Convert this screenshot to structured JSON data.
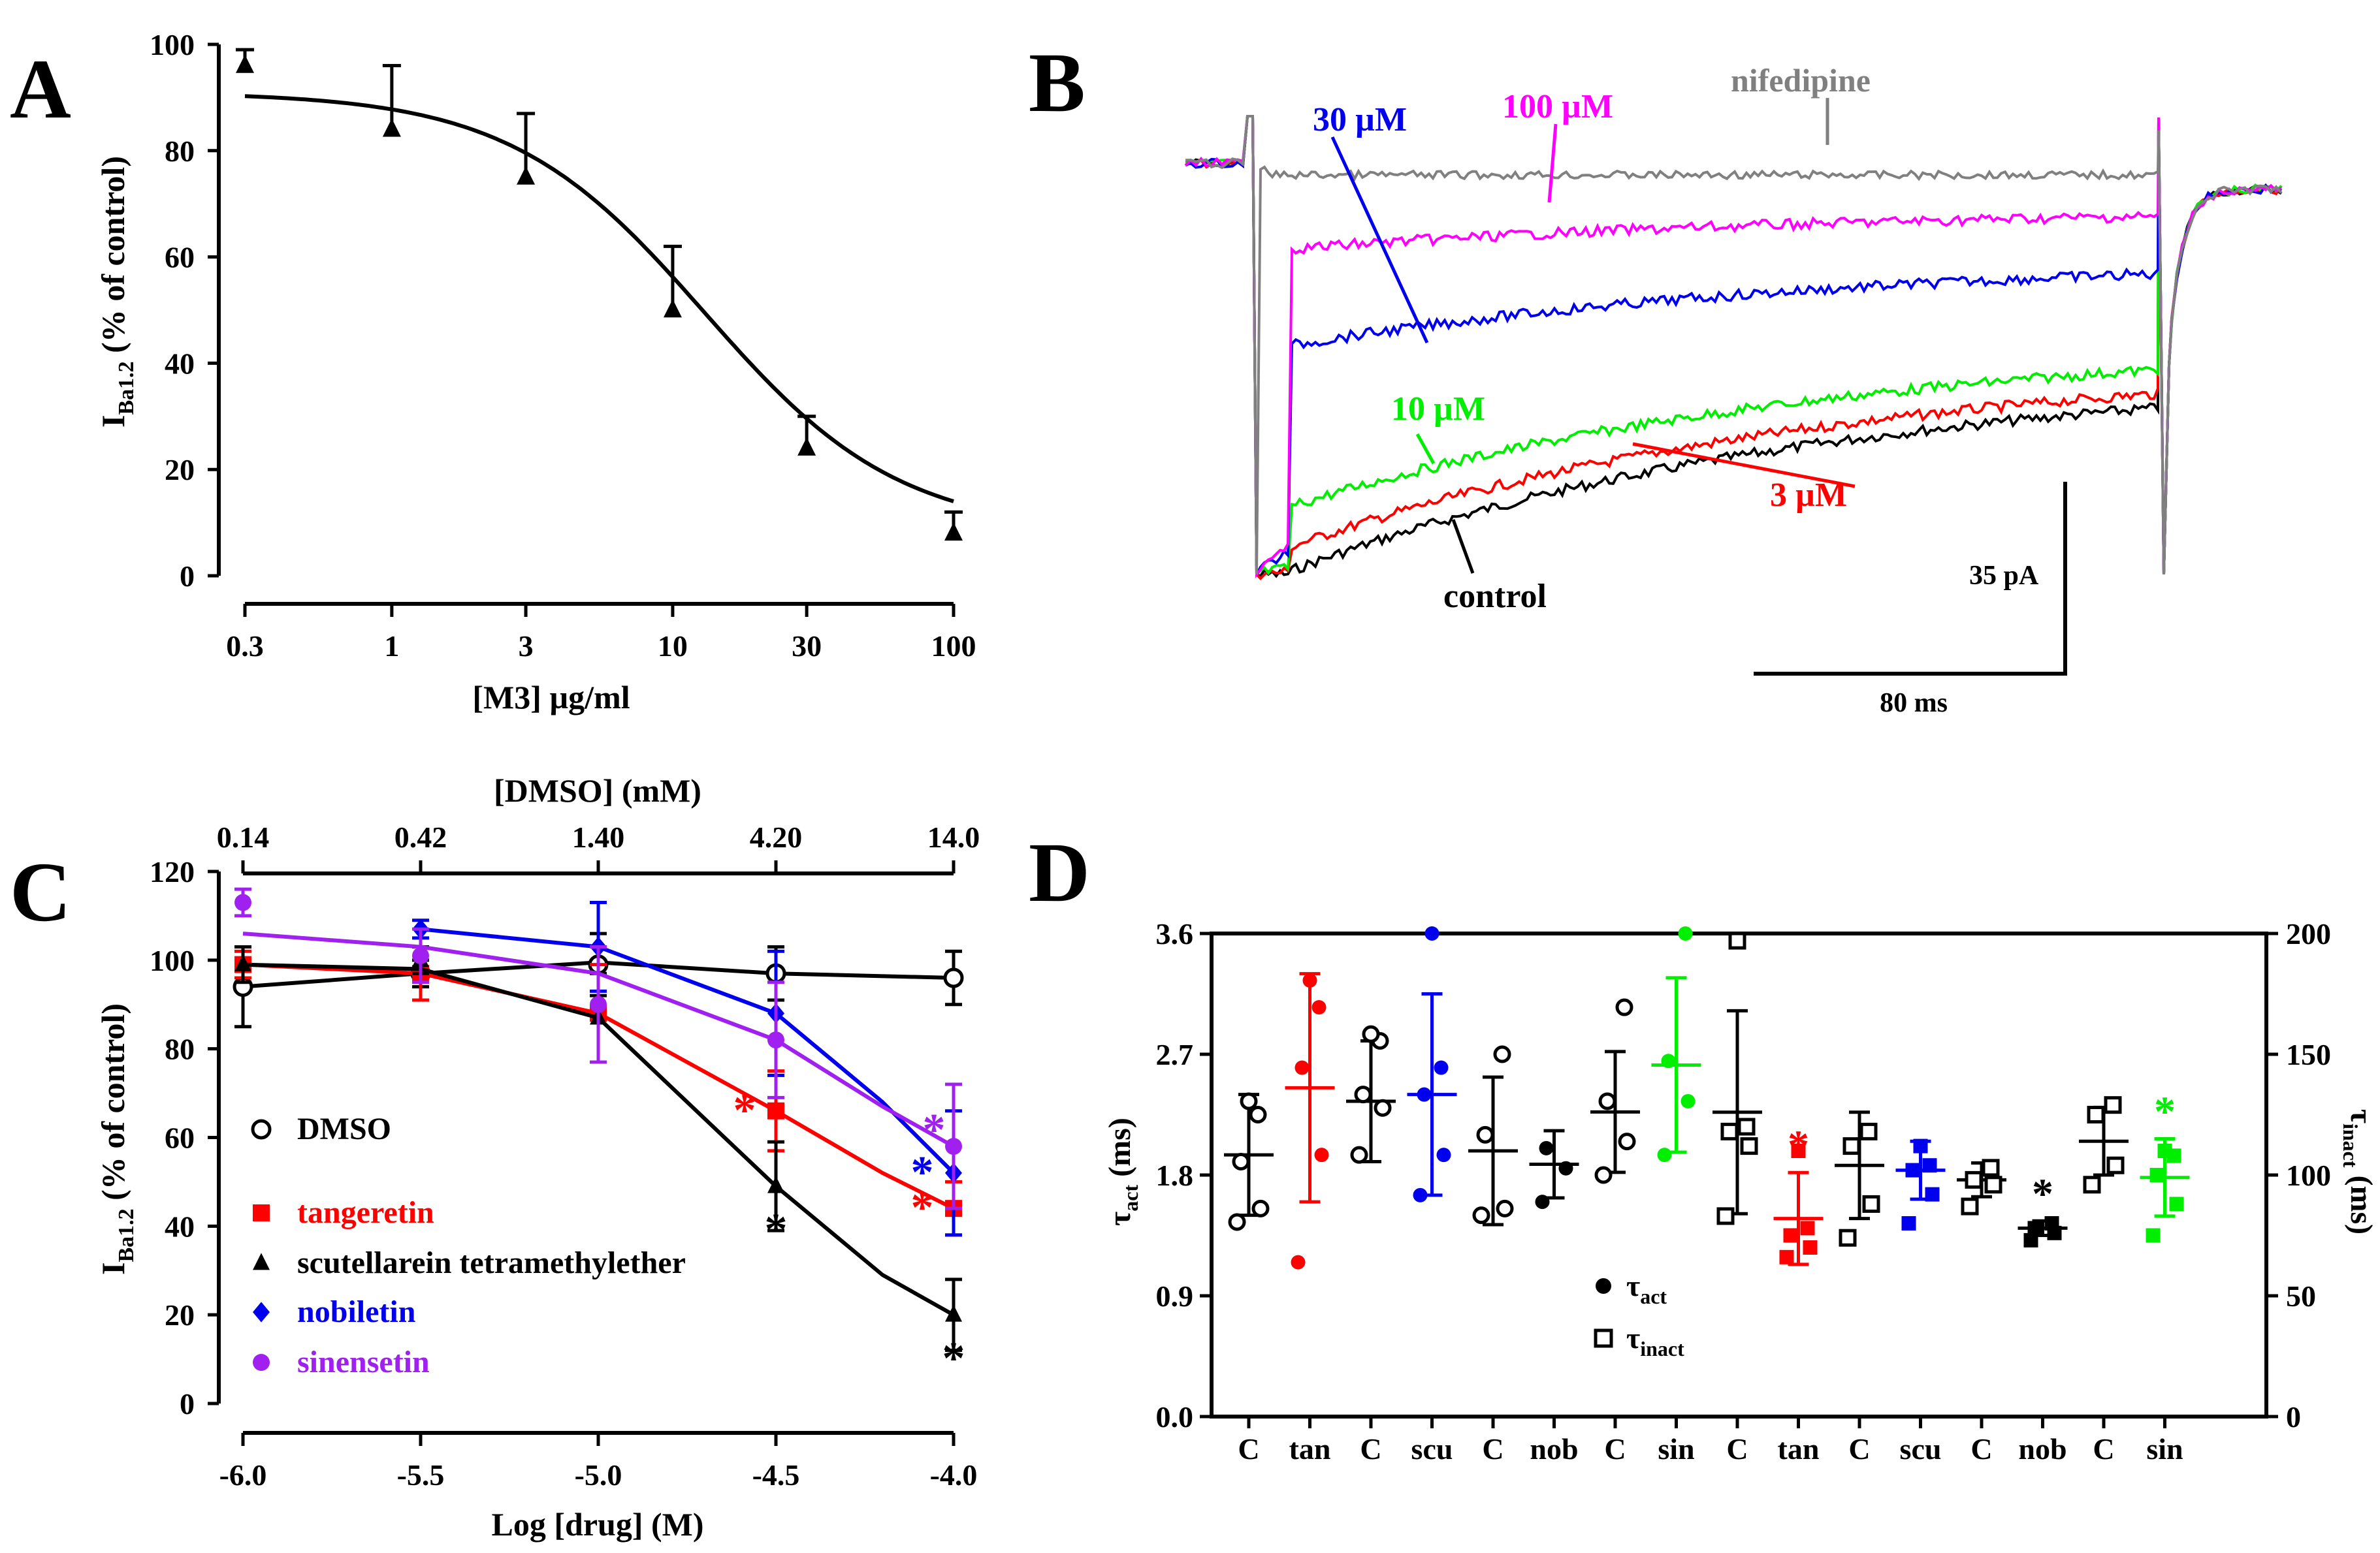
{
  "panels": {
    "a": "A",
    "b": "B",
    "c": "C",
    "d": "D"
  },
  "colors": {
    "black": "#000000",
    "red": "#ff0000",
    "blue": "#0000ee",
    "purple": "#a020f0",
    "green": "#00ee00",
    "magenta": "#ff00ff",
    "gray": "#808080"
  },
  "chart_data": [
    {
      "id": "A",
      "type": "line",
      "scale_x": "log",
      "xlabel": "[M3] µg/ml",
      "ylabel": {
        "main": "I",
        "sub": "Ba1.2",
        "rest": " (% of control)"
      },
      "xticks": [
        0.3,
        1,
        3,
        10,
        30,
        100
      ],
      "xtick_labels": [
        "0.3",
        "1",
        "3",
        "10",
        "30",
        "100"
      ],
      "yticks": [
        0,
        20,
        40,
        60,
        80,
        100
      ],
      "xlim": [
        0.3,
        100
      ],
      "ylim": [
        0,
        100
      ],
      "points": [
        {
          "x": 0.3,
          "y": 96,
          "err": 3
        },
        {
          "x": 1,
          "y": 84,
          "err": 12
        },
        {
          "x": 3,
          "y": 75,
          "err": 12
        },
        {
          "x": 10,
          "y": 50,
          "err": 12
        },
        {
          "x": 30,
          "y": 24,
          "err": 6
        },
        {
          "x": 100,
          "y": 8,
          "err": 4
        }
      ],
      "fit": {
        "top": 91,
        "bottom": 8,
        "ic50": 13,
        "hill": 1.25
      }
    },
    {
      "id": "B",
      "type": "line",
      "traces": [
        {
          "name": "control",
          "label": "control",
          "color": "#000000",
          "level": 0.0
        },
        {
          "name": "3 µM",
          "label": "3 µM",
          "color": "#ff0000",
          "level": 0.06
        },
        {
          "name": "10 µM",
          "label": "10 µM",
          "color": "#00ee00",
          "level": 0.16
        },
        {
          "name": "30 µM",
          "label": "30 µM",
          "color": "#0000ee",
          "level": 0.56
        },
        {
          "name": "100 µM",
          "label": "100 µM",
          "color": "#ff00ff",
          "level": 0.8
        },
        {
          "name": "nifedipine",
          "label": "nifedipine",
          "color": "#808080",
          "level": 1.0
        }
      ],
      "scale_bars": {
        "current": "35 pA",
        "time": "80 ms"
      }
    },
    {
      "id": "C",
      "type": "line",
      "xlabel": "Log [drug] (M)",
      "x2label": "[DMSO] (mM)",
      "ylabel": {
        "main": "I",
        "sub": "Ba1.2",
        "rest": " (% of control)"
      },
      "xticks": [
        -6.0,
        -5.5,
        -5.0,
        -4.5,
        -4.0
      ],
      "xtick_labels": [
        "-6.0",
        "-5.5",
        "-5.0",
        "-4.5",
        "-4.0"
      ],
      "x2tick_labels": [
        "0.14",
        "0.42",
        "1.40",
        "4.20",
        "14.0"
      ],
      "yticks": [
        0,
        20,
        40,
        60,
        80,
        100,
        120
      ],
      "xlim": [
        -6.0,
        -4.0
      ],
      "ylim": [
        0,
        120
      ],
      "series": [
        {
          "name": "DMSO",
          "label": "DMSO",
          "marker": "open-circle",
          "color": "#000000",
          "x": [
            -6.0,
            -5.5,
            -5.0,
            -4.5,
            -4.0
          ],
          "y": [
            94,
            97,
            99,
            97,
            96
          ],
          "err": [
            9,
            3,
            7,
            6,
            6
          ],
          "fit": [
            [
              -6.0,
              94
            ],
            [
              -5.5,
              97
            ],
            [
              -5.0,
              99.5
            ],
            [
              -4.5,
              97
            ],
            [
              -4.0,
              96
            ]
          ],
          "stars": []
        },
        {
          "name": "tangeretin",
          "label": "tangeretin",
          "marker": "square",
          "color": "#ff0000",
          "x": [
            -6.0,
            -5.5,
            -5.0,
            -4.5,
            -4.0
          ],
          "y": [
            99,
            97,
            88,
            66,
            44
          ],
          "err": [
            3,
            6,
            11,
            9,
            6
          ],
          "fit": [
            [
              -6.0,
              99
            ],
            [
              -5.5,
              97
            ],
            [
              -5.0,
              88
            ],
            [
              -4.5,
              66
            ],
            [
              -4.2,
              52
            ],
            [
              -4.0,
              44
            ]
          ],
          "stars": [
            {
              "x": -4.5,
              "y": 66,
              "pos": "left"
            },
            {
              "x": -4.0,
              "y": 44,
              "pos": "left"
            }
          ]
        },
        {
          "name": "scutellarein tetramethylether",
          "label": "scutellarein tetramethylether",
          "marker": "triangle",
          "color": "#000000",
          "x": [
            -6.0,
            -5.5,
            -5.0,
            -4.5,
            -4.0
          ],
          "y": [
            99,
            100,
            87,
            49,
            20
          ],
          "err": [
            4,
            3,
            10,
            10,
            8
          ],
          "fit": [
            [
              -6.0,
              99
            ],
            [
              -5.5,
              98
            ],
            [
              -5.0,
              87
            ],
            [
              -4.5,
              49
            ],
            [
              -4.2,
              29
            ],
            [
              -4.0,
              20
            ]
          ],
          "stars": [
            {
              "x": -4.5,
              "y": 49,
              "pos": "below"
            },
            {
              "x": -4.0,
              "y": 20,
              "pos": "below"
            }
          ]
        },
        {
          "name": "nobiletin",
          "label": "nobiletin",
          "marker": "diamond",
          "color": "#0000ee",
          "x": [
            -5.5,
            -5.0,
            -4.5,
            -4.0
          ],
          "y": [
            107,
            103,
            88,
            52
          ],
          "err": [
            2,
            10,
            14,
            14
          ],
          "fit": [
            [
              -5.5,
              107
            ],
            [
              -5.0,
              103
            ],
            [
              -4.5,
              88
            ],
            [
              -4.2,
              68
            ],
            [
              -4.0,
              52
            ]
          ],
          "stars": [
            {
              "x": -4.0,
              "y": 52,
              "pos": "left"
            }
          ]
        },
        {
          "name": "sinensetin",
          "label": "sinensetin",
          "marker": "circle",
          "color": "#a020f0",
          "x": [
            -6.0,
            -5.5,
            -5.0,
            -4.5,
            -4.0
          ],
          "y": [
            113,
            101,
            90,
            82,
            58
          ],
          "err": [
            3,
            6,
            13,
            13,
            14
          ],
          "fit": [
            [
              -6.0,
              106
            ],
            [
              -5.5,
              103
            ],
            [
              -5.0,
              97
            ],
            [
              -4.5,
              82
            ],
            [
              -4.2,
              67
            ],
            [
              -4.0,
              58
            ]
          ],
          "stars": [
            {
              "x": -4.0,
              "y": 58,
              "pos": "left-high"
            }
          ]
        }
      ]
    },
    {
      "id": "D",
      "type": "scatter",
      "ylabel_left": "τact (ms)",
      "ylabel_right": "τinact (ms)",
      "yticks_left": [
        "0.0",
        "0.9",
        "1.8",
        "2.7",
        "3.6"
      ],
      "yticks_right": [
        "0",
        "50",
        "100",
        "150",
        "200"
      ],
      "ylim_left": [
        0,
        3.6
      ],
      "ylim_right": [
        0,
        200
      ],
      "legend": [
        {
          "symbol": "filled-circle",
          "main": "τ",
          "sub": "act"
        },
        {
          "symbol": "open-square",
          "main": "τ",
          "sub": "inact"
        }
      ],
      "groups": [
        {
          "label": "C",
          "axis": "left",
          "marker": "open-circle",
          "color": "#000000",
          "values": [
            1.45,
            1.55,
            1.9,
            2.25,
            2.35
          ],
          "mean": 1.95,
          "sd": 0.45,
          "star": false
        },
        {
          "label": "tan",
          "axis": "left",
          "marker": "filled-circle",
          "color": "#ff0000",
          "values": [
            1.15,
            1.95,
            2.6,
            3.05,
            3.25
          ],
          "mean": 2.45,
          "sd": 0.85,
          "star": false
        },
        {
          "label": "C",
          "axis": "left",
          "marker": "open-circle",
          "color": "#000000",
          "values": [
            1.95,
            2.3,
            2.4,
            2.8,
            2.85
          ],
          "mean": 2.35,
          "sd": 0.45,
          "star": false
        },
        {
          "label": "scu",
          "axis": "left",
          "marker": "filled-circle",
          "color": "#0000ee",
          "values": [
            1.65,
            1.95,
            2.4,
            2.6,
            3.6
          ],
          "mean": 2.4,
          "sd": 0.75,
          "star": false
        },
        {
          "label": "C",
          "axis": "left",
          "marker": "open-circle",
          "color": "#000000",
          "values": [
            1.5,
            1.55,
            2.1,
            2.7
          ],
          "mean": 1.98,
          "sd": 0.55,
          "star": false
        },
        {
          "label": "nob",
          "axis": "left",
          "marker": "filled-circle",
          "color": "#000000",
          "values": [
            1.6,
            1.85,
            2.0
          ],
          "mean": 1.88,
          "sd": 0.25,
          "star": false
        },
        {
          "label": "C",
          "axis": "left",
          "marker": "open-circle",
          "color": "#000000",
          "values": [
            1.8,
            2.05,
            2.35,
            3.05
          ],
          "mean": 2.27,
          "sd": 0.45,
          "star": false
        },
        {
          "label": "sin",
          "axis": "left",
          "marker": "filled-circle",
          "color": "#00ee00",
          "values": [
            1.95,
            2.35,
            2.65,
            3.6
          ],
          "mean": 2.62,
          "sd": 0.65,
          "star": false
        },
        {
          "label": "C",
          "axis": "right",
          "marker": "open-square",
          "color": "#000000",
          "values": [
            83,
            112,
            118,
            120,
            197
          ],
          "mean": 126,
          "sd": 42,
          "star": false
        },
        {
          "label": "tan",
          "axis": "right",
          "marker": "filled-square",
          "color": "#ff0000",
          "values": [
            66,
            70,
            75,
            78,
            110
          ],
          "mean": 82,
          "sd": 19,
          "star": true
        },
        {
          "label": "C",
          "axis": "right",
          "marker": "open-square",
          "color": "#000000",
          "values": [
            74,
            88,
            112,
            118
          ],
          "mean": 104,
          "sd": 22,
          "star": false
        },
        {
          "label": "scu",
          "axis": "right",
          "marker": "filled-square",
          "color": "#0000ee",
          "values": [
            80,
            92,
            102,
            104,
            112
          ],
          "mean": 102,
          "sd": 12,
          "star": false
        },
        {
          "label": "C",
          "axis": "right",
          "marker": "open-square",
          "color": "#000000",
          "values": [
            87,
            96,
            98,
            103
          ],
          "mean": 98,
          "sd": 7,
          "star": false
        },
        {
          "label": "nob",
          "axis": "right",
          "marker": "filled-square",
          "color": "#000000",
          "values": [
            73,
            76,
            78,
            80
          ],
          "mean": 78,
          "sd": 3,
          "star": true
        },
        {
          "label": "C",
          "axis": "right",
          "marker": "open-square",
          "color": "#000000",
          "values": [
            96,
            104,
            125,
            129
          ],
          "mean": 114,
          "sd": 14,
          "star": false
        },
        {
          "label": "sin",
          "axis": "right",
          "marker": "filled-square",
          "color": "#00ee00",
          "values": [
            75,
            88,
            100,
            108,
            110
          ],
          "mean": 99,
          "sd": 16,
          "star": true
        }
      ]
    }
  ]
}
